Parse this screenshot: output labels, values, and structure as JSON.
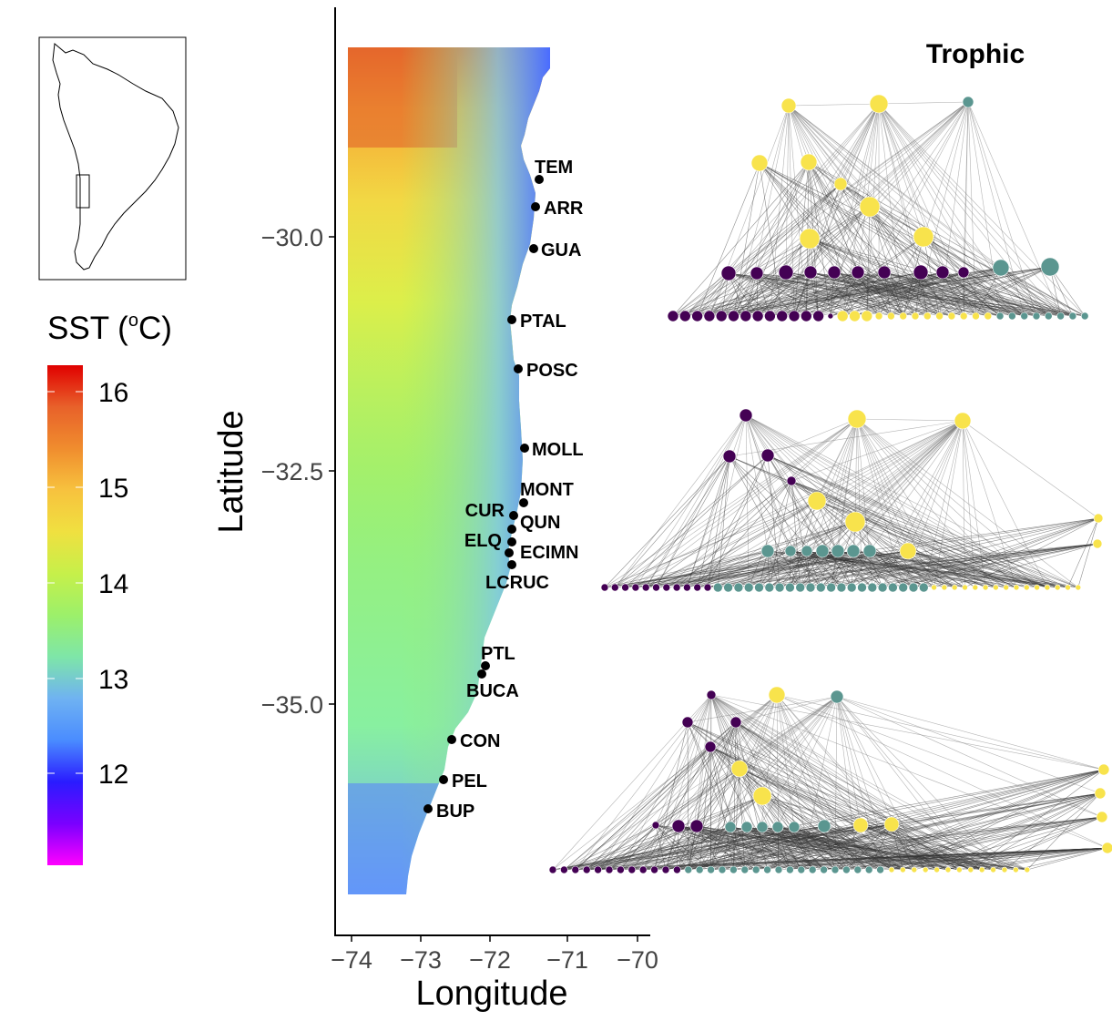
{
  "inset": {
    "description_icon": "south-america-outline-icon"
  },
  "legend": {
    "title_main": "SST (",
    "title_sup": "o",
    "title_unit": "C)",
    "ticks": [
      "16",
      "15",
      "14",
      "13",
      "12"
    ],
    "gradient": [
      "#ff00ff",
      "#7a00ff",
      "#2a1cff",
      "#4a8cff",
      "#6fb2f2",
      "#7ee6a8",
      "#9cf06a",
      "#c6f04a",
      "#f0e040",
      "#f7c23e",
      "#f08d2e",
      "#e8612a",
      "#e00000"
    ]
  },
  "map": {
    "xlabel": "Longitude",
    "ylabel": "Latitude",
    "xticks": [
      "−74",
      "−73",
      "−72",
      "−71",
      "−70"
    ],
    "yticks": [
      "−30.0",
      "−32.5",
      "−35.0"
    ],
    "sites": [
      {
        "name": "TEM"
      },
      {
        "name": "ARR"
      },
      {
        "name": "GUA"
      },
      {
        "name": "PTAL"
      },
      {
        "name": "POSC"
      },
      {
        "name": "MOLL"
      },
      {
        "name": "MONT"
      },
      {
        "name": "CUR"
      },
      {
        "name": "QUN"
      },
      {
        "name": "ELQ"
      },
      {
        "name": "ECIMN"
      },
      {
        "name": "LCRUC"
      },
      {
        "name": "PTL"
      },
      {
        "name": "BUCA"
      },
      {
        "name": "CON"
      },
      {
        "name": "PEL"
      },
      {
        "name": "BUP"
      }
    ]
  },
  "networks": {
    "title": "Trophic",
    "colors": {
      "purple": "#440154",
      "teal": "#5b9690",
      "yellow": "#f8e34c"
    }
  }
}
